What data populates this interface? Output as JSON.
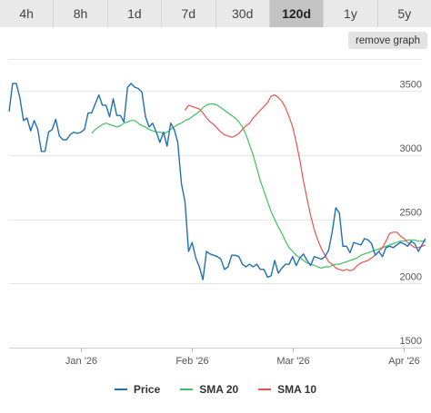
{
  "tabs": [
    {
      "label": "4h",
      "active": false
    },
    {
      "label": "8h",
      "active": false
    },
    {
      "label": "1d",
      "active": false
    },
    {
      "label": "7d",
      "active": false
    },
    {
      "label": "30d",
      "active": false
    },
    {
      "label": "120d",
      "active": true
    },
    {
      "label": "1y",
      "active": false
    },
    {
      "label": "5y",
      "active": false
    }
  ],
  "remove_graph_label": "remove graph",
  "colors": {
    "price": "#1f6fb5",
    "sma20": "#3ec160",
    "sma10": "#e8524f",
    "grid": "#e6e6e6",
    "tab_bg": "#e9e9e9",
    "tab_active_bg": "#c3c3c3"
  },
  "chart_data": {
    "type": "line",
    "ylim": [
      1500,
      3750
    ],
    "y_ticks": [
      1500,
      2000,
      2500,
      3000,
      3500
    ],
    "x_ticks": [
      {
        "label": "Jan '26",
        "day": 20
      },
      {
        "label": "Feb '26",
        "day": 51
      },
      {
        "label": "Mar '26",
        "day": 79
      },
      {
        "label": "Apr '26",
        "day": 110
      }
    ],
    "x_range": [
      0,
      115
    ],
    "grid": true,
    "legend_position": "bottom",
    "series": [
      {
        "name": "Price",
        "color": "#1f6fb5",
        "values": [
          3340,
          3560,
          3560,
          3450,
          3270,
          3290,
          3190,
          3270,
          3200,
          3030,
          3030,
          3180,
          3200,
          3280,
          3150,
          3120,
          3120,
          3160,
          3180,
          3170,
          3180,
          3200,
          3330,
          3330,
          3400,
          3470,
          3390,
          3390,
          3300,
          3440,
          3310,
          3310,
          3260,
          3530,
          3560,
          3530,
          3520,
          3490,
          3300,
          3220,
          3250,
          3180,
          3100,
          3180,
          3070,
          3250,
          3200,
          3100,
          2780,
          2640,
          2250,
          2320,
          2200,
          2130,
          2030,
          2250,
          2230,
          2220,
          2210,
          2190,
          2110,
          2130,
          2220,
          2220,
          2210,
          2150,
          2130,
          2150,
          2130,
          2150,
          2110,
          2110,
          2050,
          2060,
          2180,
          2080,
          2120,
          2150,
          2150,
          2210,
          2140,
          2200,
          2230,
          2180,
          2140,
          2210,
          2200,
          2190,
          2210,
          2260,
          2400,
          2590,
          2550,
          2290,
          2290,
          2240,
          2320,
          2310,
          2300,
          2350,
          2340,
          2310,
          2220,
          2250,
          2210,
          2280,
          2290,
          2280,
          2300,
          2320,
          2310,
          2290,
          2330,
          2310,
          2250,
          2300,
          2350
        ]
      },
      {
        "name": "SMA 20",
        "color": "#3ec160",
        "values": [
          3170,
          3200,
          3220,
          3240,
          3250,
          3240,
          3230,
          3220,
          3230,
          3250,
          3260,
          3270,
          3270,
          3250,
          3230,
          3220,
          3200,
          3190,
          3180,
          3180,
          3170,
          3180,
          3200,
          3220,
          3240,
          3250,
          3270,
          3280,
          3300,
          3320,
          3340,
          3370,
          3390,
          3400,
          3400,
          3390,
          3370,
          3350,
          3330,
          3310,
          3290,
          3260,
          3220,
          3160,
          3080,
          3000,
          2900,
          2800,
          2720,
          2640,
          2560,
          2500,
          2440,
          2390,
          2330,
          2280,
          2250,
          2220,
          2200,
          2180,
          2160,
          2150,
          2140,
          2130,
          2120,
          2130,
          2130,
          2140,
          2150,
          2150,
          2160,
          2170,
          2180,
          2190,
          2200,
          2220,
          2230,
          2240,
          2250,
          2260,
          2270,
          2280,
          2290,
          2300,
          2310,
          2320,
          2330,
          2330,
          2340,
          2340,
          2340,
          2330,
          2330,
          2330
        ]
      },
      {
        "name": "SMA 10",
        "color": "#e8524f",
        "values": [
          3350,
          3390,
          3380,
          3370,
          3360,
          3330,
          3290,
          3260,
          3240,
          3210,
          3180,
          3160,
          3150,
          3140,
          3150,
          3170,
          3200,
          3230,
          3250,
          3290,
          3320,
          3350,
          3380,
          3410,
          3460,
          3470,
          3450,
          3420,
          3370,
          3300,
          3220,
          3100,
          2960,
          2800,
          2660,
          2530,
          2420,
          2340,
          2270,
          2220,
          2170,
          2150,
          2120,
          2110,
          2100,
          2110,
          2100,
          2110,
          2140,
          2160,
          2170,
          2180,
          2200,
          2220,
          2250,
          2280,
          2330,
          2390,
          2400,
          2400,
          2370,
          2350,
          2320,
          2300,
          2280,
          2280,
          2290,
          2300
        ]
      }
    ]
  }
}
